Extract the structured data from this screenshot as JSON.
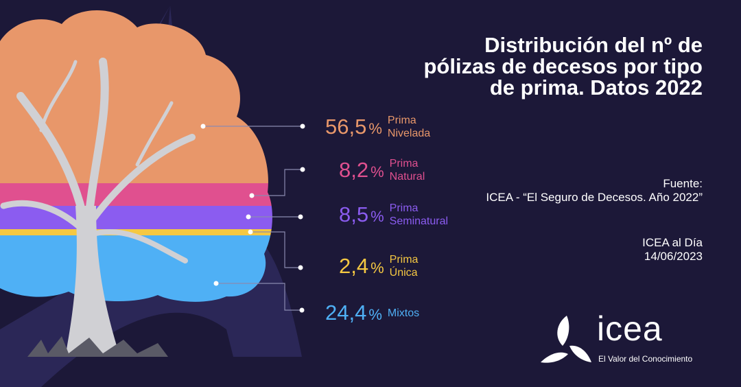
{
  "title": "Distribución del nº de pólizas de decesos por tipo de prima. Datos 2022",
  "source_label": "Fuente:",
  "source_text": "ICEA - “El Seguro de Decesos. Año 2022”",
  "publication": "ICEA al Día",
  "date": "14/06/2023",
  "logo": {
    "word": "icea",
    "tagline": "El Valor del Conocimiento"
  },
  "colors": {
    "background": "#1c1838",
    "nivelada": "#e8976a",
    "natural": "#e0508f",
    "seminatural": "#8b5cf0",
    "unica": "#f5c842",
    "mixtos": "#4fb0f5"
  },
  "chart_data": {
    "type": "pie",
    "title": "Distribución del nº de pólizas de decesos por tipo de prima. Datos 2022",
    "unit": "%",
    "categories": [
      "Prima Nivelada",
      "Prima Natural",
      "Prima Seminatural",
      "Prima Única",
      "Mixtos"
    ],
    "values": [
      56.5,
      8.2,
      8.5,
      2.4,
      24.4
    ],
    "labels": [
      {
        "value": "56,5",
        "line1": "Prima",
        "line2": "Nivelada"
      },
      {
        "value": "8,2",
        "line1": "Prima",
        "line2": "Natural"
      },
      {
        "value": "8,5",
        "line1": "Prima",
        "line2": "Seminatural"
      },
      {
        "value": "2,4",
        "line1": "Prima",
        "line2": "Única"
      },
      {
        "value": "24,4",
        "line1": "Mixtos",
        "line2": ""
      }
    ],
    "percent_sign": "%"
  }
}
